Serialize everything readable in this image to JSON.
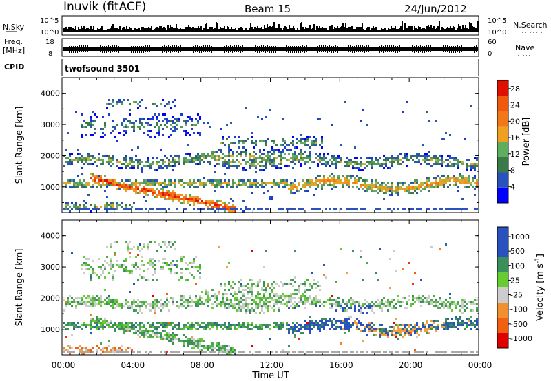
{
  "header": {
    "station": "Inuvik (fitACF)",
    "beam": "Beam 15",
    "date": "24/Jun/2012"
  },
  "strips": {
    "nsky_label": "N.Sky",
    "nsky_ticks": [
      "10^5",
      "10^0"
    ],
    "nsearch_label": "N.Search",
    "nsearch_ticks": [
      "10^5",
      "10^0"
    ],
    "freq_label_line1": "Freq.",
    "freq_label_line2": "[MHz]",
    "freq_ticks": [
      "18",
      "8"
    ],
    "nave_label": "Nave",
    "nave_ticks": [
      "60",
      "0"
    ],
    "cpid_label": "CPID",
    "cpid_value": "twofsound 3501"
  },
  "colors": {
    "power": [
      "#0000ff",
      "#2a52be",
      "#3a7a48",
      "#5fae5f",
      "#f0a020",
      "#f07818",
      "#f05a10",
      "#e01000"
    ],
    "velocity": [
      "#e00000",
      "#f06010",
      "#f09030",
      "#cccccc",
      "#66cc33",
      "#3a8f5a",
      "#2a52be",
      "#2a52be"
    ],
    "power_ramp": [
      "#e01000",
      "#f03010",
      "#f05a10",
      "#f07818",
      "#f09020",
      "#f0a020",
      "#c8b030",
      "#6aa86a",
      "#4e9a5a",
      "#3a7a48",
      "#2a5aa0",
      "#2a52be",
      "#1a3ad8",
      "#0000ff"
    ],
    "velocity_ramp": [
      "#2a52be",
      "#2a52be",
      "#2a6a8a",
      "#3a8f5a",
      "#3a8f5a",
      "#4fa84f",
      "#66cc33",
      "#cccccc",
      "#cccccc",
      "#f0a040",
      "#f08020",
      "#f06010",
      "#f03010",
      "#e00000"
    ]
  },
  "chart_data": [
    {
      "type": "heatmap",
      "quantity": "Power",
      "ylabel": "Slant Range [km]",
      "yticks": [
        "1000",
        "2000",
        "3000",
        "4000"
      ],
      "ylim": [
        180,
        4500
      ],
      "colorbar_label": "Power [dB]",
      "colorbar_ticks": [
        "4",
        "8",
        "12",
        "16",
        "20",
        "24",
        "28"
      ],
      "colorbar_range": [
        0,
        30
      ]
    },
    {
      "type": "heatmap",
      "quantity": "Velocity",
      "ylabel": "Slant Range [km]",
      "yticks": [
        "1000",
        "2000",
        "3000",
        "4000"
      ],
      "ylim": [
        180,
        4500
      ],
      "xlabel": "Time UT",
      "xticks": [
        "00:00",
        "04:00",
        "08:00",
        "12:00",
        "16:00",
        "20:00",
        "00:00"
      ],
      "xlim_hours": [
        0,
        24
      ],
      "colorbar_label": "Velocity [m s",
      "colorbar_label_sup": "-1",
      "colorbar_label_end": "]",
      "colorbar_ticks": [
        "1000",
        "500",
        "100",
        "25",
        "-25",
        "-100",
        "-500",
        "-1000"
      ]
    }
  ]
}
